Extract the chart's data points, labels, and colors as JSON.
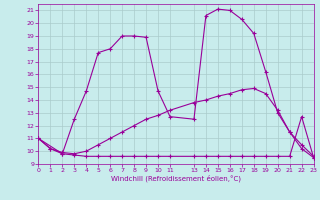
{
  "background_color": "#c8ecec",
  "grid_color": "#aacccc",
  "line_color": "#990099",
  "xlabel": "Windchill (Refroidissement éolien,°C)",
  "xlim": [
    0,
    23
  ],
  "ylim": [
    9,
    21.5
  ],
  "xticks": [
    0,
    1,
    2,
    3,
    4,
    5,
    6,
    7,
    8,
    9,
    10,
    11,
    13,
    14,
    15,
    16,
    17,
    18,
    19,
    20,
    21,
    22,
    23
  ],
  "yticks": [
    9,
    10,
    11,
    12,
    13,
    14,
    15,
    16,
    17,
    18,
    19,
    20,
    21
  ],
  "curve_main_x": [
    0,
    2,
    3,
    4,
    5,
    6,
    7,
    8,
    9,
    10,
    11,
    13,
    14,
    15,
    16,
    17,
    18,
    19,
    20,
    21,
    22,
    23
  ],
  "curve_main_y": [
    11.0,
    9.8,
    12.5,
    14.7,
    17.7,
    18.0,
    19.0,
    19.0,
    18.9,
    14.7,
    12.7,
    12.5,
    20.6,
    21.1,
    21.0,
    20.3,
    19.2,
    16.2,
    13.0,
    11.5,
    10.2,
    9.5
  ],
  "curve_diag_x": [
    0,
    1,
    2,
    3,
    4,
    5,
    6,
    7,
    8,
    9,
    10,
    11,
    13,
    14,
    15,
    16,
    17,
    18,
    19,
    20,
    21,
    22,
    23
  ],
  "curve_diag_y": [
    11.0,
    10.2,
    9.9,
    9.8,
    10.0,
    10.5,
    11.0,
    11.5,
    12.0,
    12.5,
    12.8,
    13.2,
    13.8,
    14.0,
    14.3,
    14.5,
    14.8,
    14.9,
    14.5,
    13.2,
    11.5,
    10.5,
    9.6
  ],
  "curve_flat_x": [
    0,
    1,
    2,
    3,
    4,
    5,
    6,
    7,
    8,
    9,
    10,
    11,
    13,
    14,
    15,
    16,
    17,
    18,
    19,
    20,
    21,
    22,
    23
  ],
  "curve_flat_y": [
    11.0,
    10.2,
    9.8,
    9.7,
    9.6,
    9.6,
    9.6,
    9.6,
    9.6,
    9.6,
    9.6,
    9.6,
    9.6,
    9.6,
    9.6,
    9.6,
    9.6,
    9.6,
    9.6,
    9.6,
    9.6,
    12.7,
    9.5
  ]
}
